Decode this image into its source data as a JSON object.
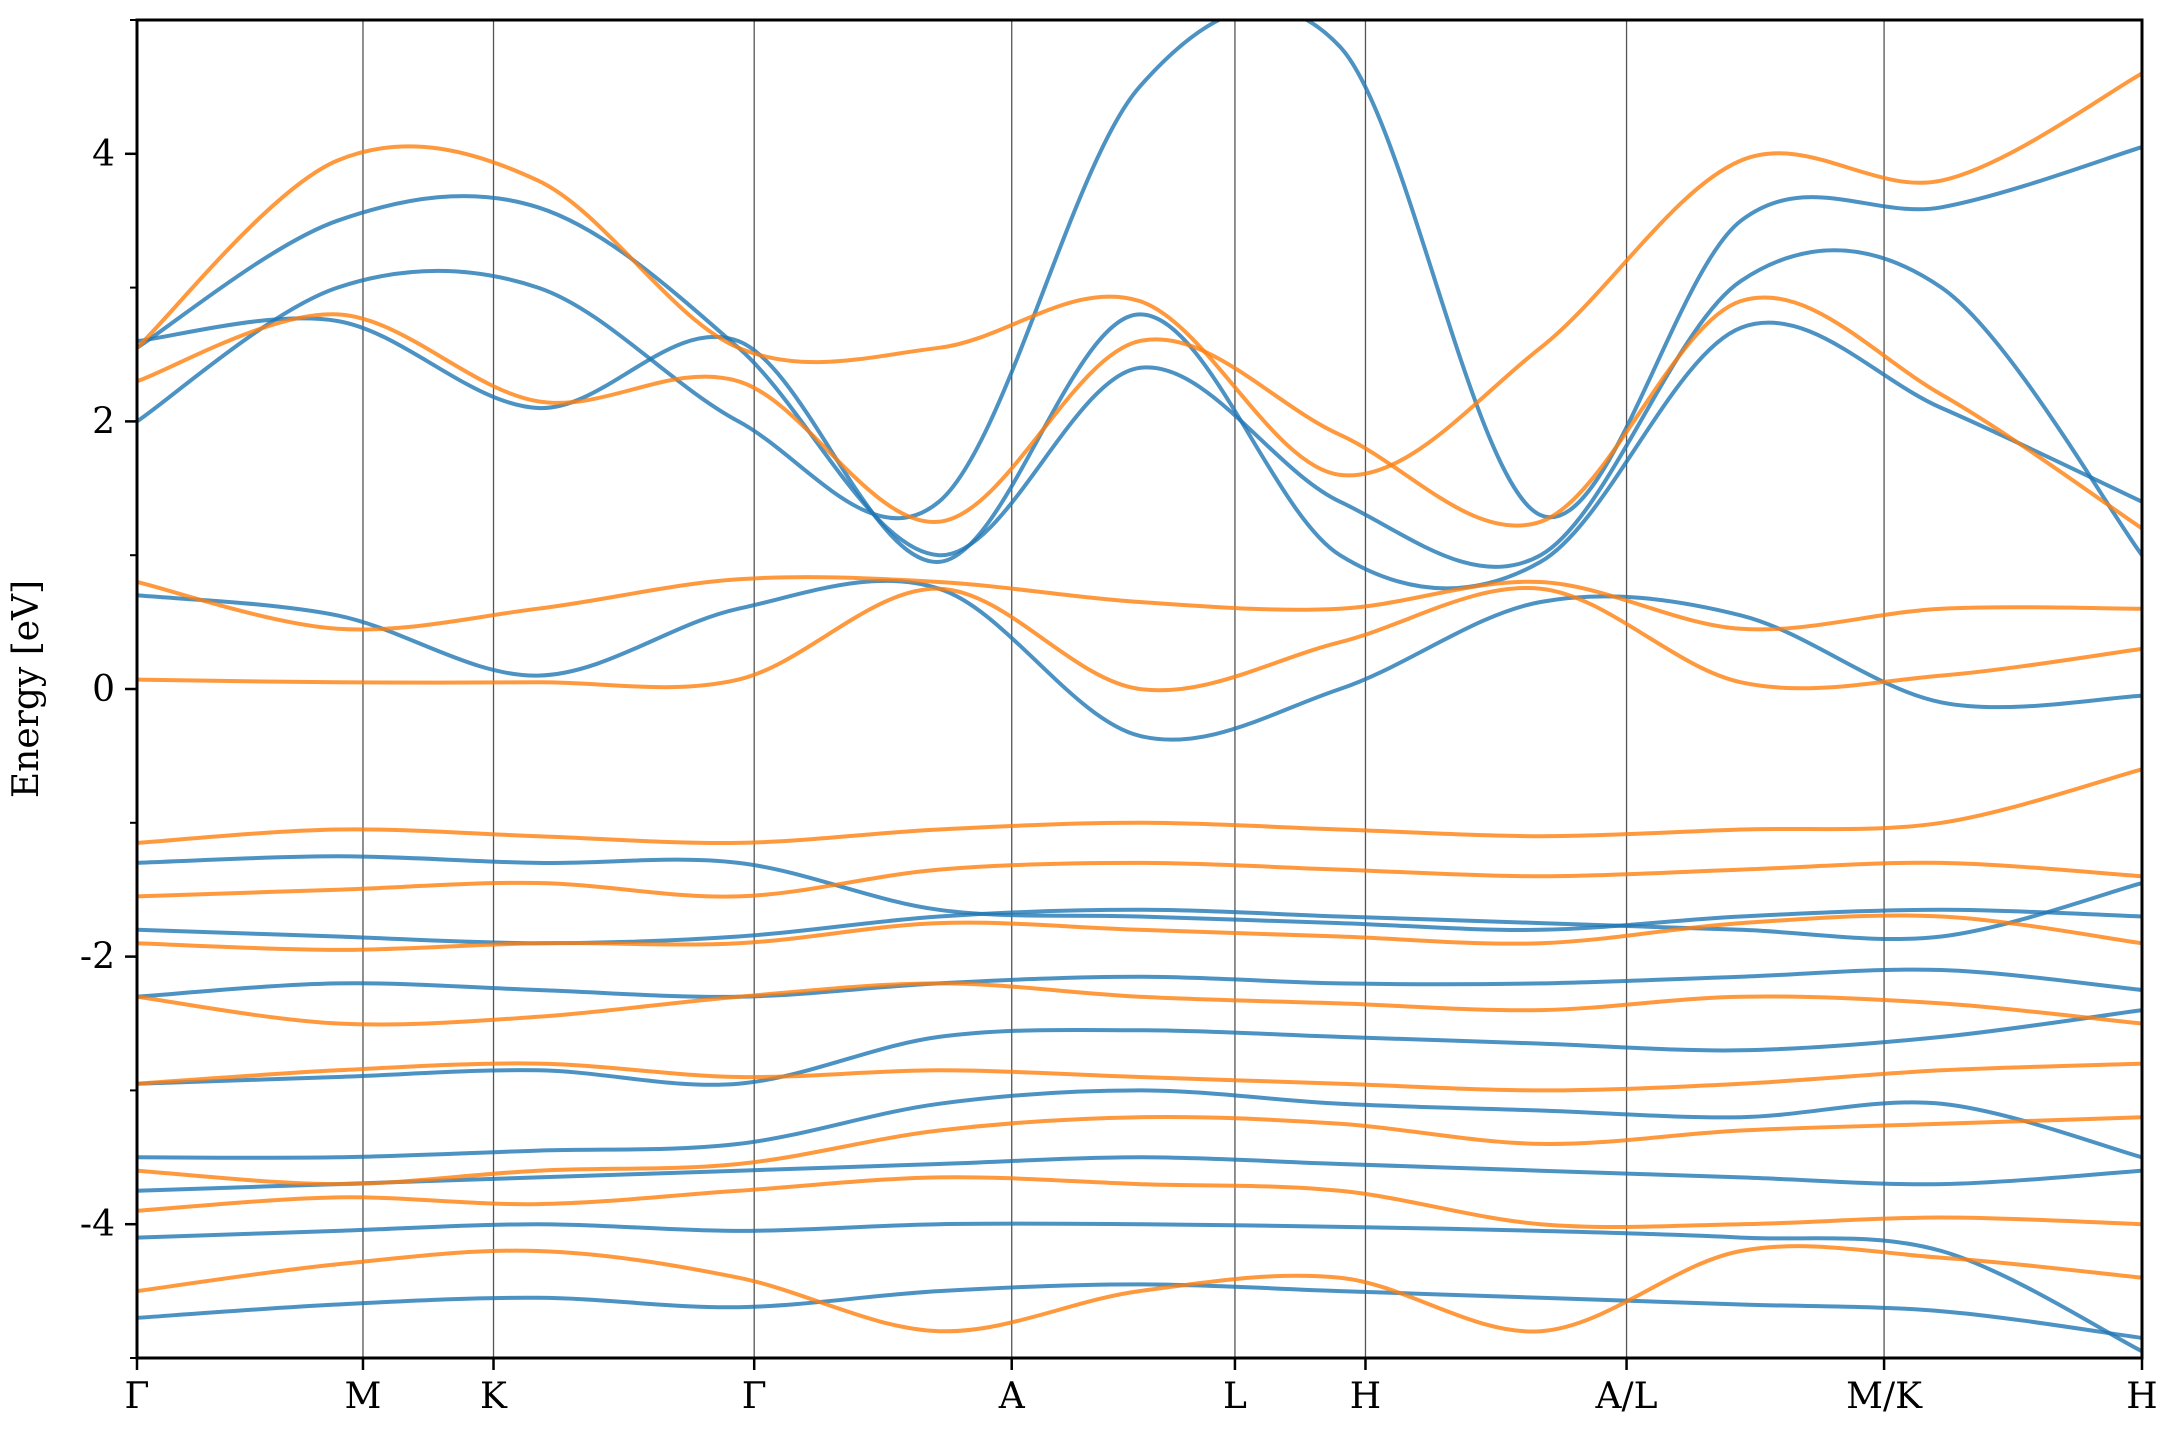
{
  "chart_data": {
    "type": "line",
    "title": "",
    "ylabel": "Energy [eV]",
    "xlabel": "",
    "ylim": [
      -5,
      5
    ],
    "y_ticks": [
      "4",
      "2",
      "0",
      "-2",
      "-4"
    ],
    "y_tick_values": [
      4,
      2,
      0,
      -2,
      -4
    ],
    "y_minor_step": 1,
    "path_labels": [
      "Γ",
      "M",
      "K",
      "Γ",
      "A",
      "L",
      "H",
      "A/L",
      "M/K",
      "H"
    ],
    "path_positions": [
      0.0,
      0.573,
      0.904,
      1.565,
      2.218,
      2.784,
      3.115,
      3.777,
      4.43,
      5.084
    ],
    "grid": "vertical lines at high-symmetry points",
    "colors": {
      "spin_up": "#1f77b4",
      "spin_down": "#ff7f0e"
    },
    "series": [
      {
        "color": "#1f77b4",
        "bands": [
          [
            -4.7,
            -4.6,
            -4.55,
            -4.62,
            -4.5,
            -4.45,
            -4.5,
            -4.55,
            -4.6,
            -4.65,
            -4.85
          ],
          [
            -4.1,
            -4.05,
            -4.0,
            -4.05,
            -4.0,
            -4.0,
            -4.02,
            -4.05,
            -4.1,
            -4.2,
            -4.95
          ],
          [
            -3.75,
            -3.7,
            -3.65,
            -3.6,
            -3.55,
            -3.5,
            -3.55,
            -3.6,
            -3.65,
            -3.7,
            -3.6
          ],
          [
            -3.5,
            -3.5,
            -3.45,
            -3.4,
            -3.1,
            -3.0,
            -3.1,
            -3.15,
            -3.2,
            -3.1,
            -3.5
          ],
          [
            -2.95,
            -2.9,
            -2.85,
            -2.95,
            -2.6,
            -2.55,
            -2.6,
            -2.65,
            -2.7,
            -2.6,
            -2.4
          ],
          [
            -2.3,
            -2.2,
            -2.25,
            -2.3,
            -2.2,
            -2.15,
            -2.2,
            -2.2,
            -2.15,
            -2.1,
            -2.25
          ],
          [
            -1.8,
            -1.85,
            -1.9,
            -1.85,
            -1.7,
            -1.65,
            -1.7,
            -1.75,
            -1.8,
            -1.85,
            -1.45
          ],
          [
            -1.3,
            -1.25,
            -1.3,
            -1.3,
            -1.65,
            -1.7,
            -1.75,
            -1.8,
            -1.7,
            -1.65,
            -1.7
          ],
          [
            0.7,
            0.55,
            0.1,
            0.6,
            0.75,
            -0.35,
            0.0,
            0.65,
            0.55,
            -0.1,
            -0.05
          ],
          [
            2.6,
            2.75,
            2.1,
            2.6,
            0.95,
            2.8,
            1.0,
            0.95,
            2.7,
            2.1,
            1.4
          ],
          [
            2.55,
            3.5,
            3.6,
            2.55,
            1.0,
            2.4,
            1.4,
            1.0,
            3.05,
            3.0,
            1.0
          ],
          [
            2.0,
            3.0,
            3.0,
            2.0,
            1.4,
            4.5,
            4.8,
            1.3,
            3.5,
            3.6,
            4.05
          ]
        ]
      },
      {
        "color": "#ff7f0e",
        "bands": [
          [
            -4.5,
            -4.3,
            -4.2,
            -4.4,
            -4.8,
            -4.5,
            -4.4,
            -4.8,
            -4.2,
            -4.25,
            -4.4
          ],
          [
            -3.9,
            -3.8,
            -3.85,
            -3.75,
            -3.65,
            -3.7,
            -3.75,
            -4.0,
            -4.0,
            -3.95,
            -4.0
          ],
          [
            -3.6,
            -3.7,
            -3.6,
            -3.55,
            -3.3,
            -3.2,
            -3.25,
            -3.4,
            -3.3,
            -3.25,
            -3.2
          ],
          [
            -2.95,
            -2.85,
            -2.8,
            -2.9,
            -2.85,
            -2.9,
            -2.95,
            -3.0,
            -2.95,
            -2.85,
            -2.8
          ],
          [
            -2.3,
            -2.5,
            -2.45,
            -2.3,
            -2.2,
            -2.3,
            -2.35,
            -2.4,
            -2.3,
            -2.35,
            -2.5
          ],
          [
            -1.9,
            -1.95,
            -1.9,
            -1.9,
            -1.75,
            -1.8,
            -1.85,
            -1.9,
            -1.75,
            -1.7,
            -1.9
          ],
          [
            -1.55,
            -1.5,
            -1.45,
            -1.55,
            -1.35,
            -1.3,
            -1.35,
            -1.4,
            -1.35,
            -1.3,
            -1.4
          ],
          [
            -1.15,
            -1.05,
            -1.1,
            -1.15,
            -1.05,
            -1.0,
            -1.05,
            -1.1,
            -1.05,
            -1.0,
            -0.6
          ],
          [
            0.07,
            0.05,
            0.05,
            0.07,
            0.75,
            0.0,
            0.35,
            0.75,
            0.05,
            0.1,
            0.3
          ],
          [
            0.8,
            0.45,
            0.6,
            0.82,
            0.8,
            0.65,
            0.6,
            0.8,
            0.45,
            0.6,
            0.6
          ],
          [
            2.3,
            2.8,
            2.15,
            2.3,
            1.25,
            2.6,
            1.9,
            1.25,
            2.9,
            2.2,
            1.2
          ],
          [
            2.55,
            3.95,
            3.8,
            2.55,
            2.55,
            2.9,
            1.6,
            2.55,
            3.95,
            3.8,
            4.6
          ]
        ]
      }
    ]
  }
}
